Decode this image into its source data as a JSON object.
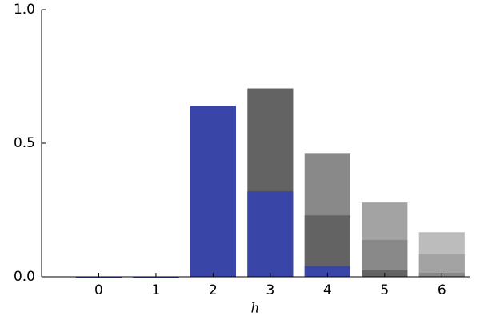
{
  "chart_data": {
    "type": "bar",
    "overlap": true,
    "x_label": "h",
    "x": [
      0,
      1,
      2,
      3,
      4,
      5,
      6
    ],
    "series": [
      {
        "color": "#3a45a8",
        "values": [
          0,
          0,
          0.64,
          0.32,
          0.04,
          null,
          null
        ]
      },
      {
        "color": "#636363",
        "values": [
          null,
          null,
          null,
          0.705,
          0.23,
          0.025,
          null
        ]
      },
      {
        "color": "#898989",
        "values": [
          null,
          null,
          null,
          null,
          0.463,
          0.138,
          0.015
        ]
      },
      {
        "color": "#a3a3a3",
        "values": [
          null,
          null,
          null,
          null,
          null,
          0.278,
          0.085
        ]
      },
      {
        "color": "#bcbcbc",
        "values": [
          null,
          null,
          null,
          null,
          null,
          null,
          0.167
        ]
      }
    ],
    "bar_width": 0.8,
    "xlim": [
      -1,
      6.5
    ],
    "xticks": [
      0,
      1,
      2,
      3,
      4,
      5,
      6
    ],
    "ylim": [
      0,
      1
    ],
    "yticks": [
      {
        "value": 0,
        "label": "0.0"
      },
      {
        "value": 0.5,
        "label": "0.5"
      },
      {
        "value": 1,
        "label": "1.0"
      }
    ],
    "grid": false
  }
}
